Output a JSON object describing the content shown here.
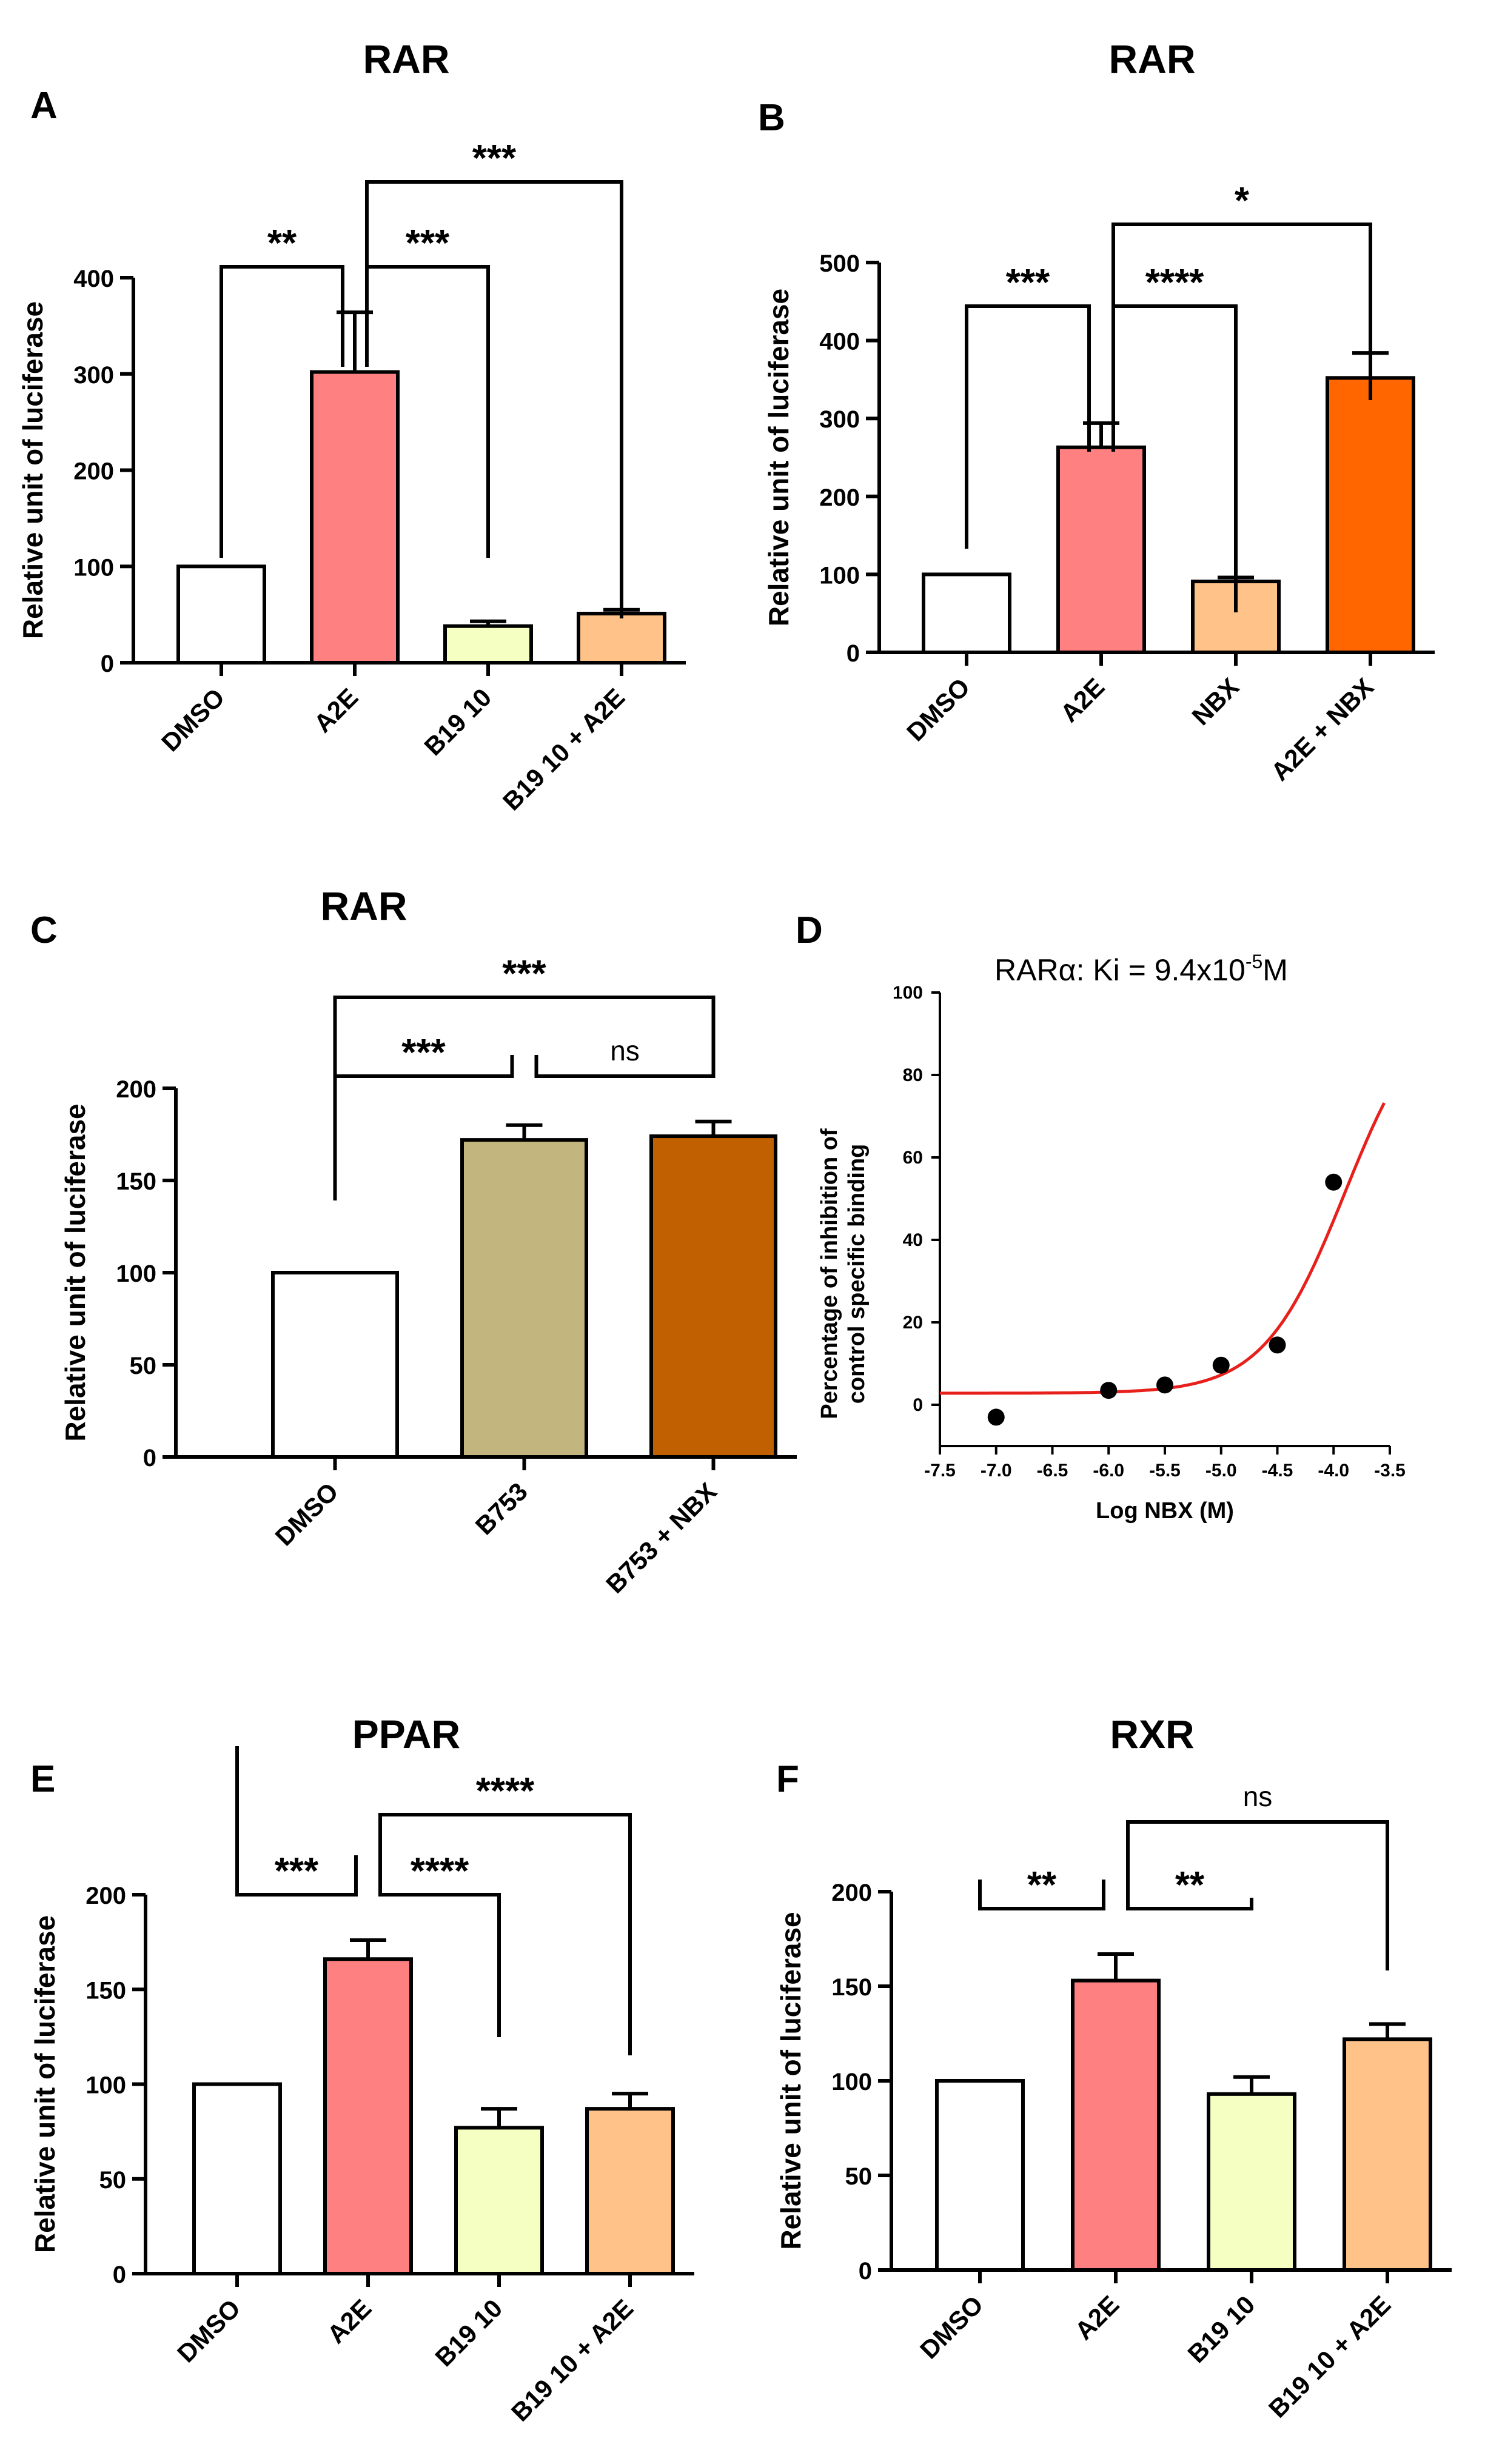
{
  "chart_data": [
    {
      "id": "A",
      "panel_label": "A",
      "type": "bar",
      "title": "RAR",
      "ylabel": "Relative unit of luciferase",
      "ylim": [
        0,
        400
      ],
      "ticks": [
        0,
        100,
        200,
        300,
        400
      ],
      "tick_labels": [
        "0",
        "100",
        "200",
        "300",
        "400"
      ],
      "categories": [
        "DMSO",
        "A2E",
        "B19 10",
        "B19 10 + A2E"
      ],
      "values": [
        100,
        302,
        38,
        51
      ],
      "errors": [
        0,
        62,
        5,
        4
      ],
      "colors": [
        "#ffffff",
        "#ff8080",
        "#f5ffc2",
        "#ffc38a"
      ],
      "brackets": [
        {
          "from": 0,
          "to": 1,
          "label": "**"
        },
        {
          "from": 1,
          "to": 2,
          "label": "***"
        },
        {
          "from": 1,
          "to": 3,
          "label": "***"
        }
      ]
    },
    {
      "id": "B",
      "panel_label": "B",
      "type": "bar",
      "title": "RAR",
      "ylabel": "Relative unit of luciferase",
      "ylim": [
        0,
        500
      ],
      "ticks": [
        0,
        100,
        200,
        300,
        400,
        500
      ],
      "tick_labels": [
        "0",
        "100",
        "200",
        "300",
        "400",
        "500"
      ],
      "categories": [
        "DMSO",
        "A2E",
        "NBX",
        "A2E + NBX"
      ],
      "values": [
        100,
        263,
        91,
        352
      ],
      "errors": [
        0,
        31,
        5,
        32
      ],
      "colors": [
        "#ffffff",
        "#ff8080",
        "#ffc38a",
        "#ff6600"
      ],
      "brackets": [
        {
          "from": 0,
          "to": 1,
          "label": "***"
        },
        {
          "from": 1,
          "to": 2,
          "label": "****"
        },
        {
          "from": 1,
          "to": 3,
          "label": "*"
        }
      ]
    },
    {
      "id": "C",
      "panel_label": "C",
      "type": "bar",
      "title": "RAR",
      "ylabel": "Relative unit of luciferase",
      "ylim": [
        0,
        200
      ],
      "ticks": [
        0,
        50,
        100,
        150,
        200
      ],
      "tick_labels": [
        "0",
        "50",
        "100",
        "150",
        "200"
      ],
      "categories": [
        "DMSO",
        "B753",
        "B753 + NBX"
      ],
      "values": [
        100,
        172,
        174
      ],
      "errors": [
        0,
        8,
        8
      ],
      "colors": [
        "#ffffff",
        "#c2b67e",
        "#c06000"
      ],
      "brackets": [
        {
          "from": 0,
          "to": 1,
          "label": "***"
        },
        {
          "from": 1,
          "to": 2,
          "label": "ns"
        },
        {
          "from": 0,
          "to": 2,
          "label": "***"
        }
      ]
    },
    {
      "id": "D",
      "panel_label": "D",
      "type": "scatter",
      "title_parts": [
        "RARα: Ki = 9.4x10",
        "-5",
        "M"
      ],
      "xlabel": "Log NBX (M)",
      "ylabel_lines": [
        "Percentage of inhibition of",
        "control specific binding"
      ],
      "xlim": [
        -7.5,
        -3.5
      ],
      "ylim": [
        -10,
        100
      ],
      "xticks": [
        -7.5,
        -7.0,
        -6.5,
        -6.0,
        -5.5,
        -5.0,
        -4.5,
        -4.0,
        -3.5
      ],
      "xtick_labels": [
        "-7.5",
        "-7.0",
        "-6.5",
        "-6.0",
        "-5.5",
        "-5.0",
        "-4.5",
        "-4.0",
        "-3.5"
      ],
      "yticks": [
        0,
        20,
        40,
        60,
        80,
        100
      ],
      "ytick_labels": [
        "0",
        "20",
        "40",
        "60",
        "80",
        "100"
      ],
      "points": [
        [
          -7.0,
          -3
        ],
        [
          -6.0,
          3.5
        ],
        [
          -5.5,
          4.8
        ],
        [
          -5.0,
          9.6
        ],
        [
          -4.5,
          14.5
        ],
        [
          -4.0,
          54
        ]
      ],
      "curve": {
        "bottom": 2.8,
        "top": 100,
        "log_ic50": -3.9,
        "hill": 1.2,
        "x_start": -7.5,
        "x_end": -3.55,
        "color": "#e8201c"
      }
    },
    {
      "id": "E",
      "panel_label": "E",
      "type": "bar",
      "title": "PPAR",
      "ylabel": "Relative unit of luciferase",
      "ylim": [
        0,
        200
      ],
      "ticks": [
        0,
        50,
        100,
        150,
        200
      ],
      "tick_labels": [
        "0",
        "50",
        "100",
        "150",
        "200"
      ],
      "categories": [
        "DMSO",
        "A2E",
        "B19 10",
        "B19 10 + A2E"
      ],
      "values": [
        100,
        166,
        77,
        87
      ],
      "errors": [
        0,
        10,
        10,
        8
      ],
      "colors": [
        "#ffffff",
        "#ff8080",
        "#f5ffc2",
        "#ffc38a"
      ],
      "brackets": [
        {
          "from": 0,
          "to": 1,
          "label": "***"
        },
        {
          "from": 1,
          "to": 2,
          "label": "****"
        },
        {
          "from": 1,
          "to": 3,
          "label": "****"
        }
      ]
    },
    {
      "id": "F",
      "panel_label": "F",
      "type": "bar",
      "title": "RXR",
      "ylabel": "Relative unit of luciferase",
      "ylim": [
        0,
        200
      ],
      "ticks": [
        0,
        50,
        100,
        150,
        200
      ],
      "tick_labels": [
        "0",
        "50",
        "100",
        "150",
        "200"
      ],
      "categories": [
        "DMSO",
        "A2E",
        "B19 10",
        "B19 10 + A2E"
      ],
      "values": [
        100,
        153,
        93,
        122
      ],
      "errors": [
        0,
        14,
        9,
        8
      ],
      "colors": [
        "#ffffff",
        "#ff8080",
        "#f5ffc2",
        "#ffc38a"
      ],
      "brackets": [
        {
          "from": 0,
          "to": 1,
          "label": "**"
        },
        {
          "from": 1,
          "to": 2,
          "label": "**"
        },
        {
          "from": 1,
          "to": 3,
          "label": "ns"
        }
      ]
    }
  ]
}
